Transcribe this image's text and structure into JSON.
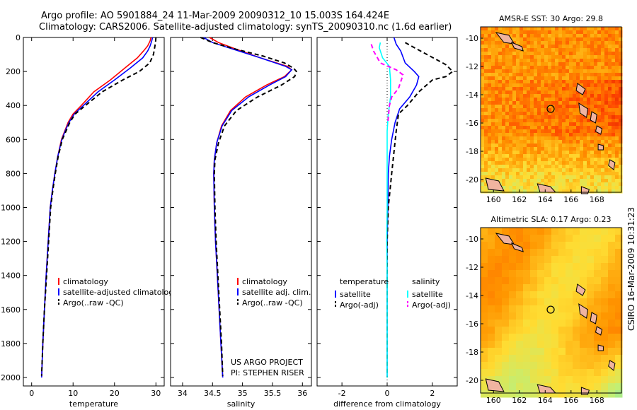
{
  "header": {
    "line1": "Argo profile: AO 5901884_24 11-Mar-2009 20090312_10 15.003S 164.424E",
    "line2": "Climatology: CARS2006. Satellite-adjusted climatology: synTS_20090310.nc (1.6d earlier)"
  },
  "side_label": "CSIRO 16-Mar-2009 10:31:23",
  "project_note": {
    "line1": "US ARGO PROJECT",
    "line2": "PI: STEPHEN RISER"
  },
  "colors": {
    "climatology": "#ff0000",
    "satellite": "#0000ff",
    "argo": "#000000",
    "sal_sat": "#00ffff",
    "sal_argo": "#ff00ff"
  },
  "chart_data": [
    {
      "id": "temperature",
      "type": "line",
      "xlabel": "temperature",
      "xlim": [
        -2,
        32
      ],
      "ylim": [
        0,
        2050
      ],
      "xticks": [
        0,
        10,
        20,
        30
      ],
      "yticks": [
        0,
        200,
        400,
        600,
        800,
        1000,
        1200,
        1400,
        1600,
        1800,
        2000
      ],
      "legend": [
        "climatology",
        "satellite-adjusted climatology",
        "Argo(..raw -QC)"
      ],
      "series": [
        {
          "name": "climatology",
          "style": "solid",
          "color": "#ff0000",
          "points": [
            [
              28.8,
              0
            ],
            [
              28.6,
              20
            ],
            [
              28.0,
              50
            ],
            [
              27.0,
              80
            ],
            [
              25.5,
              120
            ],
            [
              22.5,
              180
            ],
            [
              19,
              250
            ],
            [
              15,
              320
            ],
            [
              12,
              400
            ],
            [
              10,
              450
            ],
            [
              8.8,
              500
            ],
            [
              8,
              550
            ],
            [
              7.2,
              600
            ],
            [
              6.3,
              700
            ],
            [
              5.6,
              800
            ],
            [
              5,
              900
            ],
            [
              4.5,
              1000
            ],
            [
              4,
              1200
            ],
            [
              3.5,
              1400
            ],
            [
              3.1,
              1600
            ],
            [
              2.7,
              1800
            ],
            [
              2.4,
              2000
            ]
          ]
        },
        {
          "name": "satellite-adjusted climatology",
          "style": "solid",
          "color": "#0000ff",
          "points": [
            [
              29.2,
              0
            ],
            [
              29.0,
              20
            ],
            [
              28.6,
              50
            ],
            [
              28,
              80
            ],
            [
              26.8,
              120
            ],
            [
              23.8,
              180
            ],
            [
              20,
              250
            ],
            [
              16,
              320
            ],
            [
              12.5,
              400
            ],
            [
              10.3,
              450
            ],
            [
              9,
              500
            ],
            [
              8.1,
              550
            ],
            [
              7.3,
              600
            ],
            [
              6.3,
              700
            ],
            [
              5.6,
              800
            ],
            [
              5,
              900
            ],
            [
              4.5,
              1000
            ],
            [
              4,
              1200
            ],
            [
              3.5,
              1400
            ],
            [
              3.1,
              1600
            ],
            [
              2.7,
              1800
            ],
            [
              2.4,
              2000
            ]
          ]
        },
        {
          "name": "Argo(..raw -QC)",
          "style": "dashed",
          "color": "#000000",
          "points": [
            [
              30,
              0
            ],
            [
              29.9,
              30
            ],
            [
              29.7,
              60
            ],
            [
              29.4,
              100
            ],
            [
              28.5,
              150
            ],
            [
              26,
              200
            ],
            [
              22,
              250
            ],
            [
              17,
              320
            ],
            [
              13,
              400
            ],
            [
              10.5,
              450
            ],
            [
              9.2,
              500
            ],
            [
              8.3,
              550
            ],
            [
              7.4,
              600
            ],
            [
              6.4,
              700
            ],
            [
              5.7,
              800
            ],
            [
              5.1,
              900
            ],
            [
              4.6,
              1000
            ],
            [
              4.1,
              1200
            ],
            [
              3.6,
              1400
            ],
            [
              3.1,
              1600
            ],
            [
              2.7,
              1800
            ],
            [
              2.4,
              1990
            ]
          ]
        }
      ]
    },
    {
      "id": "salinity",
      "type": "line",
      "xlabel": "salinity",
      "xlim": [
        33.8,
        36.15
      ],
      "ylim": [
        0,
        2050
      ],
      "xticks": [
        34,
        34.5,
        35,
        35.5,
        36
      ],
      "yticks": [
        0,
        200,
        400,
        600,
        800,
        1000,
        1200,
        1400,
        1600,
        1800,
        2000
      ],
      "legend": [
        "climatology",
        "satellite adj. clim.",
        "Argo(..raw -QC)"
      ],
      "series": [
        {
          "name": "climatology",
          "style": "solid",
          "color": "#ff0000",
          "points": [
            [
              34.45,
              0
            ],
            [
              34.6,
              30
            ],
            [
              34.9,
              70
            ],
            [
              35.3,
              120
            ],
            [
              35.75,
              170
            ],
            [
              35.82,
              190
            ],
            [
              35.7,
              230
            ],
            [
              35.4,
              280
            ],
            [
              35.05,
              350
            ],
            [
              34.8,
              430
            ],
            [
              34.65,
              520
            ],
            [
              34.57,
              620
            ],
            [
              34.53,
              720
            ],
            [
              34.52,
              800
            ],
            [
              34.53,
              1000
            ],
            [
              34.55,
              1200
            ],
            [
              34.58,
              1400
            ],
            [
              34.61,
              1600
            ],
            [
              34.64,
              1800
            ],
            [
              34.67,
              2000
            ]
          ]
        },
        {
          "name": "satellite adj. clim.",
          "style": "solid",
          "color": "#0000ff",
          "points": [
            [
              34.35,
              0
            ],
            [
              34.5,
              30
            ],
            [
              34.85,
              70
            ],
            [
              35.3,
              120
            ],
            [
              35.72,
              170
            ],
            [
              35.82,
              190
            ],
            [
              35.72,
              230
            ],
            [
              35.45,
              280
            ],
            [
              35.1,
              350
            ],
            [
              34.82,
              430
            ],
            [
              34.66,
              520
            ],
            [
              34.57,
              620
            ],
            [
              34.53,
              720
            ],
            [
              34.52,
              800
            ],
            [
              34.53,
              1000
            ],
            [
              34.55,
              1200
            ],
            [
              34.58,
              1400
            ],
            [
              34.61,
              1600
            ],
            [
              34.64,
              1800
            ],
            [
              34.67,
              2000
            ]
          ]
        },
        {
          "name": "Argo(..raw -QC)",
          "style": "dashed",
          "color": "#000000",
          "points": [
            [
              34.3,
              0
            ],
            [
              34.5,
              30
            ],
            [
              34.9,
              70
            ],
            [
              35.35,
              110
            ],
            [
              35.7,
              150
            ],
            [
              35.85,
              180
            ],
            [
              35.9,
              200
            ],
            [
              35.87,
              230
            ],
            [
              35.65,
              280
            ],
            [
              35.25,
              350
            ],
            [
              34.9,
              430
            ],
            [
              34.7,
              520
            ],
            [
              34.6,
              620
            ],
            [
              34.54,
              720
            ],
            [
              34.53,
              800
            ],
            [
              34.54,
              1000
            ],
            [
              34.56,
              1200
            ],
            [
              34.59,
              1400
            ],
            [
              34.62,
              1600
            ],
            [
              34.65,
              1800
            ],
            [
              34.67,
              1990
            ]
          ]
        }
      ]
    },
    {
      "id": "difference",
      "type": "line",
      "xlabel": "difference from climatology",
      "xlim": [
        -3.1,
        3.1
      ],
      "ylim": [
        0,
        2050
      ],
      "xticks": [
        -2,
        0,
        2
      ],
      "yticks": [
        0,
        200,
        400,
        600,
        800,
        1000,
        1200,
        1400,
        1600,
        1800,
        2000
      ],
      "legend_left_title": "temperature",
      "legend_right_title": "salinity",
      "legend_left": [
        "satellite",
        "Argo(-adj)"
      ],
      "legend_right": [
        "satellite",
        "Argo(-adj)"
      ],
      "series": [
        {
          "name": "temperature satellite",
          "style": "solid",
          "color": "#0000ff",
          "points": [
            [
              0.3,
              0
            ],
            [
              0.4,
              40
            ],
            [
              0.6,
              80
            ],
            [
              0.8,
              150
            ],
            [
              1.2,
              200
            ],
            [
              1.4,
              230
            ],
            [
              1.3,
              280
            ],
            [
              1.0,
              350
            ],
            [
              0.55,
              420
            ],
            [
              0.35,
              500
            ],
            [
              0.2,
              600
            ],
            [
              0.1,
              700
            ],
            [
              0.05,
              800
            ],
            [
              0.03,
              1000
            ],
            [
              0,
              1200
            ],
            [
              0,
              1600
            ],
            [
              0,
              2000
            ]
          ]
        },
        {
          "name": "temperature Argo(-adj)",
          "style": "dashed",
          "color": "#000000",
          "points": [
            [
              0.8,
              30
            ],
            [
              1.2,
              60
            ],
            [
              1.9,
              110
            ],
            [
              2.6,
              160
            ],
            [
              2.9,
              200
            ],
            [
              2.6,
              230
            ],
            [
              2.0,
              250
            ],
            [
              1.4,
              320
            ],
            [
              0.9,
              400
            ],
            [
              0.5,
              450
            ],
            [
              0.4,
              550
            ],
            [
              0.2,
              800
            ],
            [
              0.05,
              1000
            ],
            [
              0,
              1200
            ],
            [
              0,
              1600
            ],
            [
              0,
              2000
            ]
          ]
        },
        {
          "name": "salinity satellite",
          "style": "solid",
          "color": "#00ffff",
          "points": [
            [
              -0.3,
              30
            ],
            [
              -0.35,
              60
            ],
            [
              -0.2,
              120
            ],
            [
              0.1,
              170
            ],
            [
              0.15,
              250
            ],
            [
              0.15,
              350
            ],
            [
              0.05,
              450
            ],
            [
              0,
              550
            ],
            [
              0,
              650
            ],
            [
              0,
              800
            ],
            [
              0,
              1000
            ],
            [
              -0.02,
              1200
            ],
            [
              0,
              1400
            ],
            [
              0,
              1600
            ],
            [
              0,
              2000
            ]
          ]
        },
        {
          "name": "salinity Argo(-adj)",
          "style": "dashed",
          "color": "#ff00ff",
          "points": [
            [
              -0.7,
              40
            ],
            [
              -0.6,
              80
            ],
            [
              -0.3,
              150
            ],
            [
              0.4,
              190
            ],
            [
              0.7,
              220
            ],
            [
              0.5,
              300
            ],
            [
              0.2,
              350
            ],
            [
              0.1,
              400
            ],
            [
              0.03,
              500
            ]
          ]
        }
      ]
    },
    {
      "id": "sst",
      "type": "heatmap",
      "title": "AMSR-E SST: 30 Argo: 29.8",
      "xlim": [
        159,
        169.9
      ],
      "ylim": [
        -20.9,
        -9.2
      ],
      "xticks": [
        160,
        162,
        164,
        166,
        168
      ],
      "yticks": [
        -10,
        -12,
        -14,
        -16,
        -18,
        -20
      ],
      "argo_position": {
        "lon": 164.424,
        "lat": -15.003
      }
    },
    {
      "id": "sla",
      "type": "heatmap",
      "title": "Altimetric SLA: 0.17 Argo: 0.23",
      "xlim": [
        159,
        169.9
      ],
      "ylim": [
        -20.9,
        -9.2
      ],
      "xticks": [
        160,
        162,
        164,
        166,
        168
      ],
      "yticks": [
        -10,
        -12,
        -14,
        -16,
        -18,
        -20
      ],
      "argo_position": {
        "lon": 164.424,
        "lat": -15.003
      }
    }
  ]
}
